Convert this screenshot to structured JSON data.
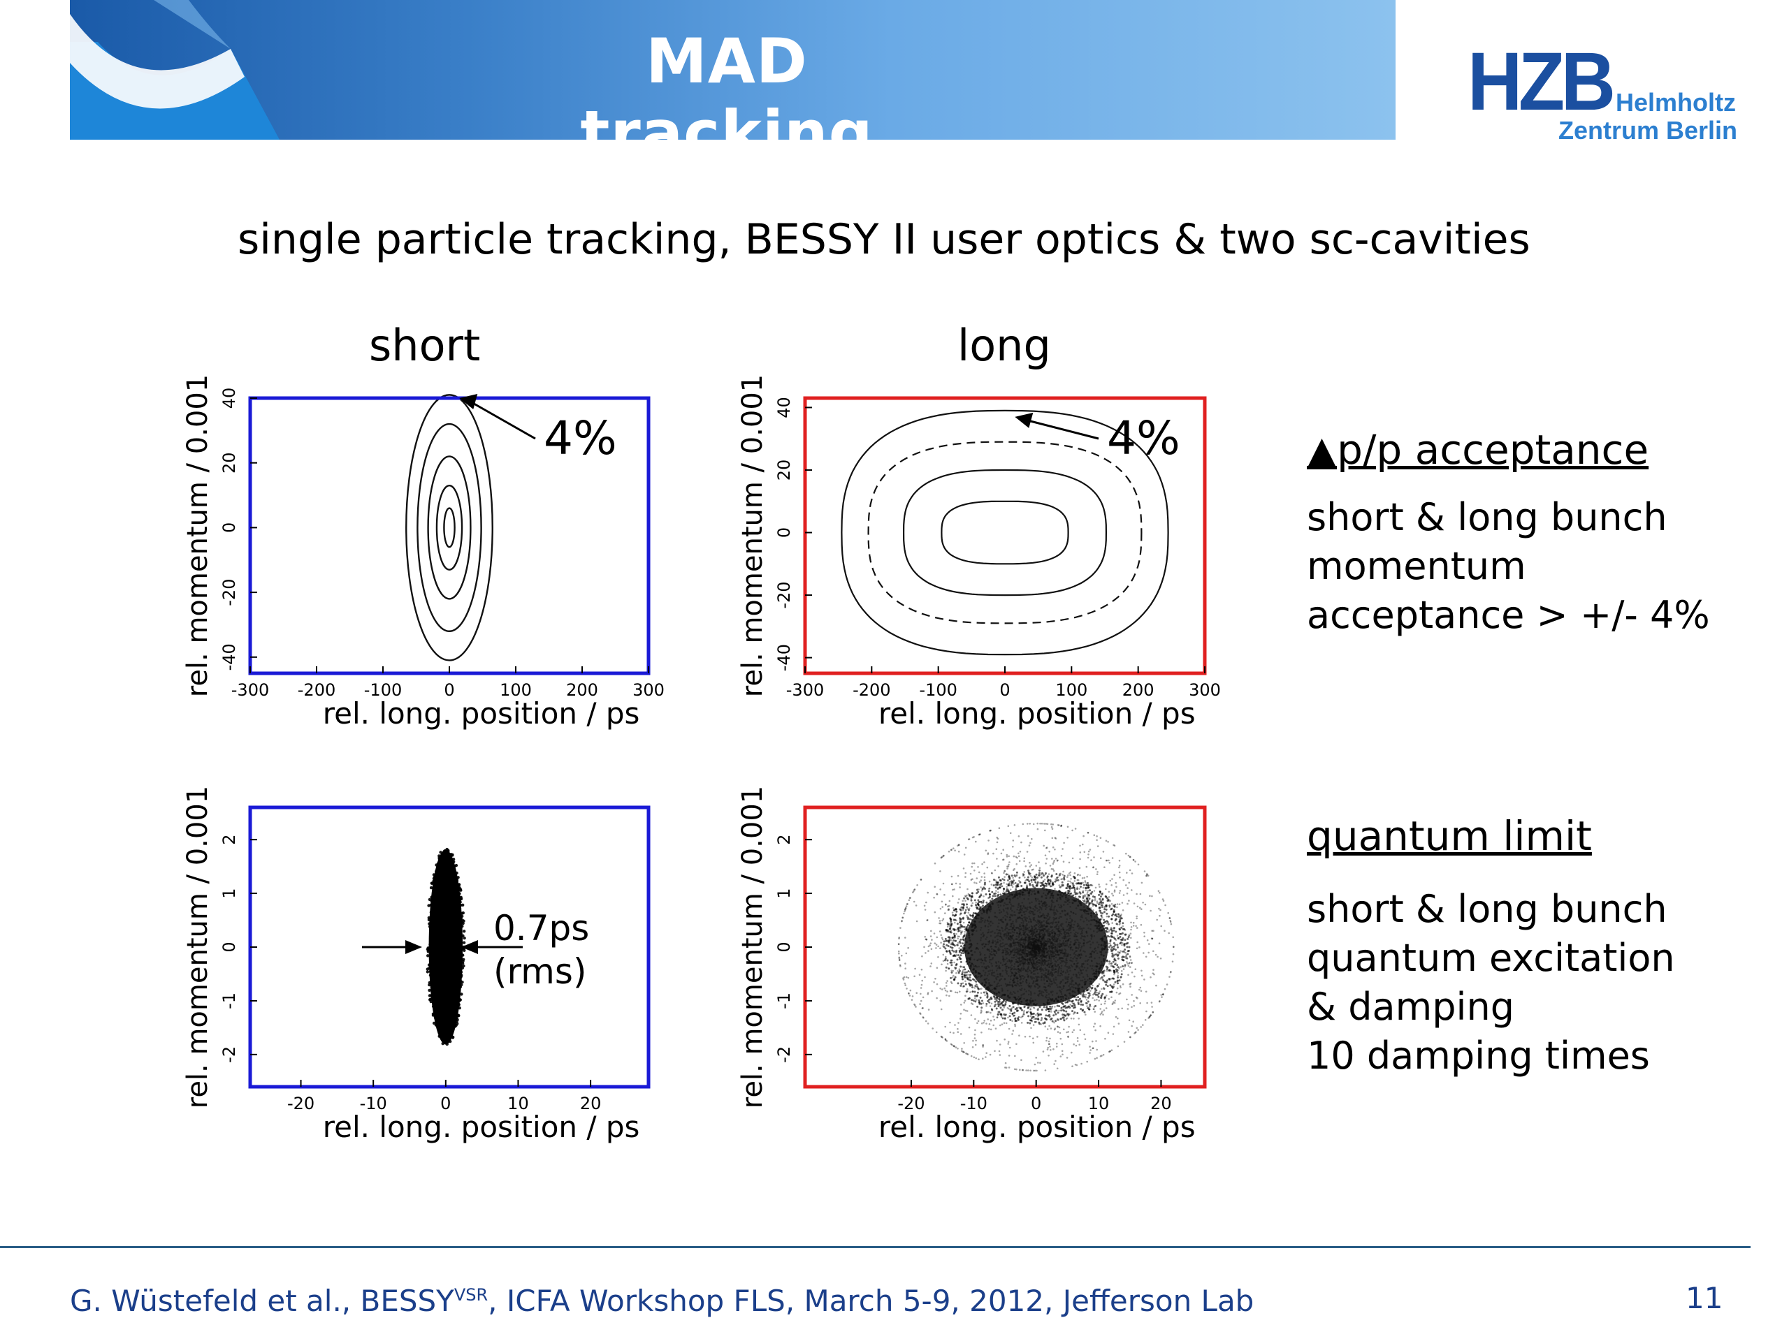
{
  "slide": {
    "title": "MAD tracking",
    "subtitle": "single particle tracking,  BESSY II user optics & two sc-cavities",
    "columns": [
      "short",
      "long"
    ]
  },
  "logo": {
    "mark": "HZB",
    "line1": "Helmholtz",
    "line2": "Zentrum Berlin"
  },
  "side": {
    "acceptance": {
      "heading": "p/p acceptance",
      "text": "short & long bunch\nmomentum\nacceptance > +/- 4%"
    },
    "quantum": {
      "heading": "quantum limit",
      "text": "short & long bunch\nquantum excitation\n& damping\n10 damping times"
    }
  },
  "footer": {
    "author": "G. Wüstefeld et al., BESSY",
    "sup": "VSR",
    "rest": ", ICFA Workshop FLS, March 5-9, 2012, Jefferson Lab",
    "page": "11"
  },
  "colors": {
    "short_frame": "#1a1ad6",
    "long_frame": "#e02020",
    "header_start": "#1a5aa8",
    "header_end": "#8cc2ee",
    "footer_text": "#1b3f8a"
  },
  "chart_data": [
    {
      "type": "scatter",
      "panel": "short-acceptance",
      "xlabel": "rel. long. position / ps",
      "ylabel": "rel. momentum / 0.001",
      "xlim": [
        -300,
        300
      ],
      "ylim": [
        -45,
        40
      ],
      "xticks": [
        -300,
        -200,
        -100,
        0,
        100,
        200,
        300
      ],
      "yticks": [
        40,
        20,
        0,
        -20,
        -40
      ],
      "frame_color": "#1a1ad6",
      "contours": [
        {
          "rx": 65,
          "ry": 41,
          "style": "solid"
        },
        {
          "rx": 48,
          "ry": 32,
          "style": "solid"
        },
        {
          "rx": 32,
          "ry": 22,
          "style": "solid"
        },
        {
          "rx": 19,
          "ry": 13,
          "style": "solid"
        },
        {
          "rx": 8,
          "ry": 6,
          "style": "solid"
        }
      ],
      "annotation": {
        "text": "4%",
        "target": [
          15,
          40
        ]
      }
    },
    {
      "type": "scatter",
      "panel": "long-acceptance",
      "xlabel": "rel. long. position / ps",
      "ylabel": "rel. momentum / 0.001",
      "xlim": [
        -300,
        300
      ],
      "ylim": [
        -45,
        43
      ],
      "xticks": [
        -300,
        -200,
        -100,
        0,
        100,
        200,
        300
      ],
      "yticks": [
        40,
        20,
        0,
        -20,
        -40
      ],
      "frame_color": "#e02020",
      "contours": [
        {
          "rx": 245,
          "ry": 39,
          "style": "solid"
        },
        {
          "rx": 205,
          "ry": 29,
          "style": "dashed"
        },
        {
          "rx": 152,
          "ry": 20,
          "style": "solid"
        },
        {
          "rx": 95,
          "ry": 10,
          "style": "solid"
        }
      ],
      "annotation": {
        "text": "4%",
        "target": [
          15,
          37
        ]
      }
    },
    {
      "type": "scatter",
      "panel": "short-quantum",
      "xlabel": "rel. long. position / ps",
      "ylabel": "rel. momentum / 0.001",
      "xlim": [
        -27,
        28
      ],
      "ylim": [
        -2.6,
        2.6
      ],
      "xticks": [
        -20,
        -10,
        0,
        10,
        20
      ],
      "yticks": [
        2,
        1,
        0,
        -1,
        -2
      ],
      "frame_color": "#1a1ad6",
      "cloud": {
        "rx": 2.6,
        "ry": 1.85
      },
      "annotation": {
        "text": "0.7ps",
        "text2": "(rms)"
      }
    },
    {
      "type": "scatter",
      "panel": "long-quantum",
      "xlabel": "rel. long. position / ps",
      "ylabel": "rel. momentum / 0.001",
      "xlim": [
        -37,
        27
      ],
      "ylim": [
        -2.6,
        2.6
      ],
      "xticks": [
        -20,
        -10,
        0,
        10,
        20
      ],
      "yticks": [
        2,
        1,
        0,
        -1,
        -2
      ],
      "frame_color": "#e02020",
      "cloud": {
        "rx": 10,
        "ry": 1.0,
        "halo_rx": 22,
        "halo_ry": 2.3
      }
    }
  ]
}
